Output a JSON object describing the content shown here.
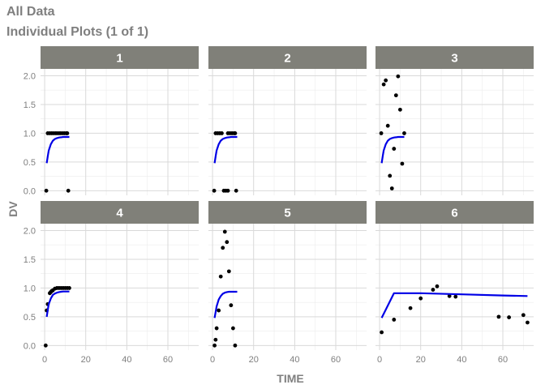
{
  "header": {
    "title": "All Data",
    "subtitle": "Individual Plots (1 of 1)"
  },
  "colors": {
    "strip": "#808079",
    "observed": "#000000",
    "prediction": "#0000e6",
    "grid": "#d9d9d9",
    "text": "#7f7f7f"
  },
  "chart_data": {
    "type": "scatter",
    "facet_by": "ID",
    "xlabel": "TIME",
    "ylabel": "DV",
    "xlim": [
      -2,
      75
    ],
    "ylim": [
      -0.08,
      2.12
    ],
    "xticks": [
      0,
      20,
      40,
      60
    ],
    "yticks": [
      0.0,
      0.5,
      1.0,
      1.5,
      2.0
    ],
    "ytick_labels": [
      "0.0",
      "0.5",
      "1.0",
      "1.5",
      "2.0"
    ],
    "grid": true,
    "panels": [
      {
        "label": "1",
        "observed": [
          [
            0.8,
            0
          ],
          [
            11.5,
            0
          ],
          [
            1.5,
            1
          ],
          [
            2.5,
            1
          ],
          [
            3.5,
            1
          ],
          [
            4.5,
            1
          ],
          [
            5.5,
            1
          ],
          [
            6.5,
            1
          ],
          [
            7.5,
            1
          ],
          [
            8.5,
            1
          ],
          [
            9.5,
            1
          ],
          [
            10.5,
            1
          ],
          [
            11,
            1
          ]
        ],
        "predicted": [
          [
            1,
            0.48
          ],
          [
            1.5,
            0.6
          ],
          [
            2,
            0.7
          ],
          [
            3,
            0.81
          ],
          [
            4,
            0.87
          ],
          [
            5,
            0.9
          ],
          [
            6,
            0.915
          ],
          [
            7,
            0.925
          ],
          [
            8,
            0.93
          ],
          [
            9,
            0.935
          ],
          [
            10,
            0.935
          ],
          [
            11,
            0.935
          ],
          [
            12,
            0.935
          ]
        ]
      },
      {
        "label": "2",
        "observed": [
          [
            0.8,
            0
          ],
          [
            5.5,
            0
          ],
          [
            6.5,
            0
          ],
          [
            7.5,
            0
          ],
          [
            11.5,
            0
          ],
          [
            1.5,
            1
          ],
          [
            2.5,
            1
          ],
          [
            3.5,
            1
          ],
          [
            4.5,
            1
          ],
          [
            7.5,
            1
          ],
          [
            8.5,
            1
          ],
          [
            9.5,
            1
          ],
          [
            10.5,
            1
          ],
          [
            11,
            1
          ]
        ],
        "predicted": [
          [
            1,
            0.48
          ],
          [
            1.5,
            0.6
          ],
          [
            2,
            0.7
          ],
          [
            3,
            0.81
          ],
          [
            4,
            0.87
          ],
          [
            5,
            0.9
          ],
          [
            6,
            0.915
          ],
          [
            7,
            0.925
          ],
          [
            8,
            0.93
          ],
          [
            9,
            0.935
          ],
          [
            10,
            0.935
          ],
          [
            11,
            0.935
          ],
          [
            12,
            0.935
          ]
        ]
      },
      {
        "label": "3",
        "observed": [
          [
            0.8,
            1.0
          ],
          [
            2,
            1.85
          ],
          [
            3,
            1.92
          ],
          [
            4,
            1.13
          ],
          [
            5,
            0.26
          ],
          [
            6,
            0.04
          ],
          [
            7,
            0.73
          ],
          [
            8,
            1.66
          ],
          [
            9,
            1.99
          ],
          [
            10,
            1.41
          ],
          [
            11,
            0.47
          ],
          [
            12,
            1.0
          ]
        ],
        "predicted": [
          [
            1,
            0.48
          ],
          [
            1.5,
            0.6
          ],
          [
            2,
            0.7
          ],
          [
            3,
            0.81
          ],
          [
            4,
            0.87
          ],
          [
            5,
            0.9
          ],
          [
            6,
            0.915
          ],
          [
            7,
            0.925
          ],
          [
            8,
            0.93
          ],
          [
            9,
            0.935
          ],
          [
            10,
            0.935
          ],
          [
            11,
            0.935
          ],
          [
            12,
            0.935
          ]
        ]
      },
      {
        "label": "4",
        "observed": [
          [
            0.5,
            0
          ],
          [
            1,
            0.61
          ],
          [
            1.5,
            0.72
          ],
          [
            2.5,
            0.91
          ],
          [
            3,
            0.93
          ],
          [
            3.5,
            0.95
          ],
          [
            4,
            0.96
          ],
          [
            5,
            0.99
          ],
          [
            6,
            1.0
          ],
          [
            7,
            1.0
          ],
          [
            8,
            1.0
          ],
          [
            9,
            1.0
          ],
          [
            10,
            1.0
          ],
          [
            11,
            1.0
          ],
          [
            12,
            1.0
          ]
        ],
        "predicted": [
          [
            1,
            0.5
          ],
          [
            1.5,
            0.62
          ],
          [
            2,
            0.72
          ],
          [
            3,
            0.82
          ],
          [
            4,
            0.88
          ],
          [
            5,
            0.905
          ],
          [
            6,
            0.92
          ],
          [
            7,
            0.93
          ],
          [
            8,
            0.935
          ],
          [
            9,
            0.94
          ],
          [
            10,
            0.94
          ],
          [
            11,
            0.94
          ],
          [
            12,
            0.94
          ]
        ]
      },
      {
        "label": "5",
        "observed": [
          [
            1,
            0
          ],
          [
            1.5,
            0.1
          ],
          [
            2,
            0.3
          ],
          [
            3,
            0.61
          ],
          [
            4,
            1.2
          ],
          [
            5,
            1.7
          ],
          [
            6,
            1.98
          ],
          [
            7,
            1.8
          ],
          [
            8,
            1.29
          ],
          [
            9,
            0.7
          ],
          [
            10,
            0.3
          ],
          [
            11,
            0
          ]
        ],
        "predicted": [
          [
            1,
            0.48
          ],
          [
            2,
            0.68
          ],
          [
            3,
            0.8
          ],
          [
            4,
            0.86
          ],
          [
            5,
            0.9
          ],
          [
            6,
            0.92
          ],
          [
            7,
            0.93
          ],
          [
            8,
            0.935
          ],
          [
            9,
            0.935
          ],
          [
            10,
            0.935
          ],
          [
            11,
            0.935
          ],
          [
            12,
            0.935
          ]
        ]
      },
      {
        "label": "6",
        "observed": [
          [
            1,
            0.23
          ],
          [
            7,
            0.45
          ],
          [
            15,
            0.65
          ],
          [
            20,
            0.82
          ],
          [
            26,
            0.97
          ],
          [
            28,
            1.03
          ],
          [
            34,
            0.86
          ],
          [
            37,
            0.85
          ],
          [
            58,
            0.5
          ],
          [
            63,
            0.49
          ],
          [
            70,
            0.53
          ],
          [
            72,
            0.4
          ]
        ],
        "predicted": [
          [
            1,
            0.48
          ],
          [
            7,
            0.91
          ],
          [
            20,
            0.91
          ],
          [
            40,
            0.89
          ],
          [
            60,
            0.87
          ],
          [
            72,
            0.86
          ]
        ]
      }
    ]
  }
}
